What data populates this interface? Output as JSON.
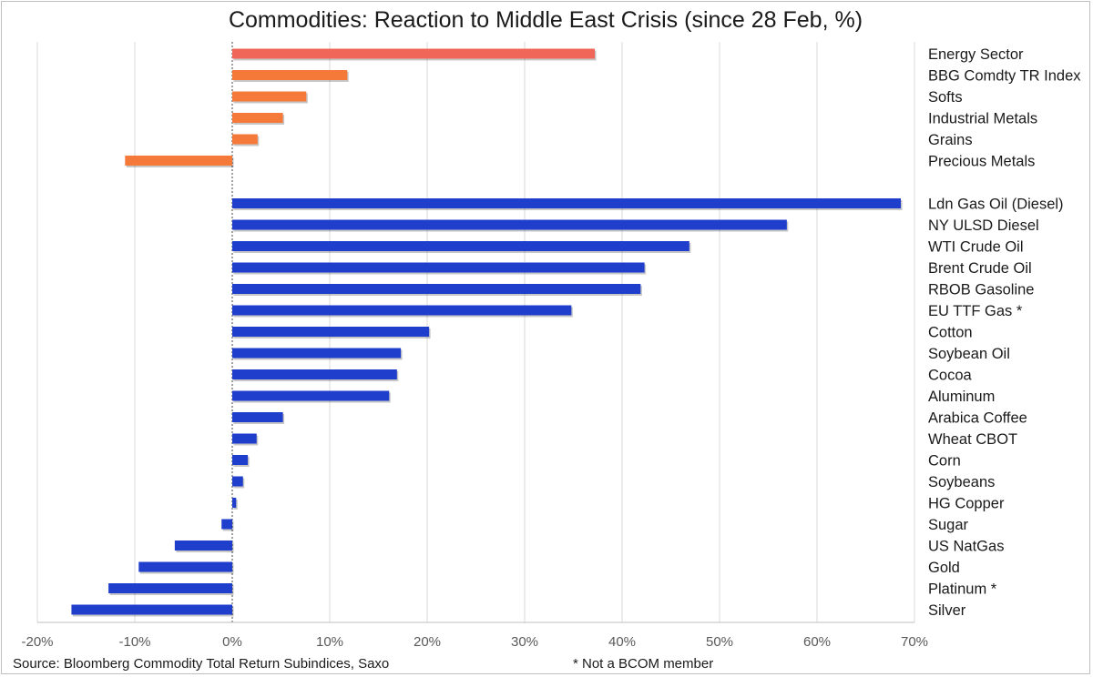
{
  "chart_data": {
    "type": "bar",
    "orientation": "horizontal",
    "title": "Commodities: Reaction to Middle East Crisis (since 28 Feb, %)",
    "xlabel": "",
    "ylabel": "",
    "xlim": [
      -20,
      70
    ],
    "xticks": [
      -20,
      -10,
      0,
      10,
      20,
      30,
      40,
      50,
      60,
      70
    ],
    "xtick_labels": [
      "-20%",
      "-10%",
      "0%",
      "10%",
      "20%",
      "30%",
      "40%",
      "50%",
      "60%",
      "70%"
    ],
    "grid": "vertical",
    "label_position": "right",
    "groups": [
      {
        "color": "#f0675a",
        "bars": [
          {
            "label": "Energy Sector",
            "value": 37.2,
            "color": "#f0675a"
          },
          {
            "label": "BBG Comdty TR Index",
            "value": 11.8,
            "color": "#f57a3a"
          },
          {
            "label": "Softs",
            "value": 7.6,
            "color": "#f57a3a"
          },
          {
            "label": "Industrial Metals",
            "value": 5.2,
            "color": "#f57a3a"
          },
          {
            "label": "Grains",
            "value": 2.6,
            "color": "#f57a3a"
          },
          {
            "label": "Precious Metals",
            "value": -11.0,
            "color": "#f57a3a"
          }
        ]
      },
      {
        "color": "#1f3ecc",
        "bars": [
          {
            "label": "Ldn Gas Oil (Diesel)",
            "value": 68.6
          },
          {
            "label": "NY ULSD Diesel",
            "value": 56.9
          },
          {
            "label": "WTI Crude Oil",
            "value": 46.9
          },
          {
            "label": "Brent Crude Oil",
            "value": 42.3
          },
          {
            "label": "RBOB Gasoline",
            "value": 41.9
          },
          {
            "label": "EU TTF Gas *",
            "value": 34.8
          },
          {
            "label": "Cotton",
            "value": 20.2
          },
          {
            "label": "Soybean Oil",
            "value": 17.3
          },
          {
            "label": "Cocoa",
            "value": 16.9
          },
          {
            "label": "Aluminum",
            "value": 16.1
          },
          {
            "label": "Arabica Coffee",
            "value": 5.2
          },
          {
            "label": "Wheat CBOT",
            "value": 2.5
          },
          {
            "label": "Corn",
            "value": 1.6
          },
          {
            "label": "Soybeans",
            "value": 1.1
          },
          {
            "label": "HG Copper",
            "value": 0.4
          },
          {
            "label": "Sugar",
            "value": -1.1
          },
          {
            "label": "US NatGas",
            "value": -5.9
          },
          {
            "label": "Gold",
            "value": -9.6
          },
          {
            "label": "Platinum *",
            "value": -12.7
          },
          {
            "label": "Silver",
            "value": -16.5
          }
        ]
      }
    ]
  },
  "footer": {
    "source": "Source: Bloomberg Commodity Total Return Subindices, Saxo",
    "note": "* Not a BCOM member"
  },
  "colors": {
    "grid": "#d9d9d9",
    "axis": "#bfbfbf",
    "text": "#1a1a1a",
    "tick_text": "#595959"
  }
}
